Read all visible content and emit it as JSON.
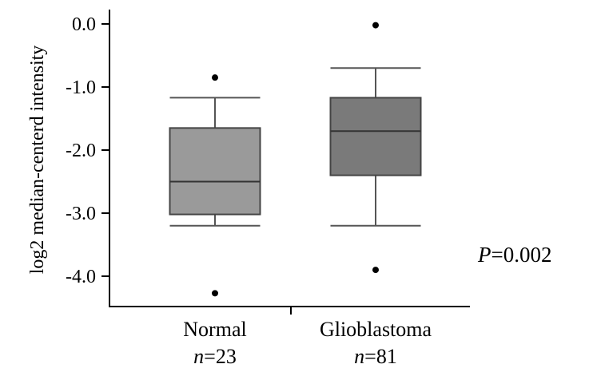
{
  "chart_data": {
    "type": "box",
    "ylabel": "log2 median-centerd intensity",
    "ylim": [
      -4.5,
      0.0
    ],
    "yticks": [
      {
        "value": 0.0,
        "label": "0.0"
      },
      {
        "value": -1.0,
        "label": "-1.0"
      },
      {
        "value": -2.0,
        "label": "-2.0"
      },
      {
        "value": -3.0,
        "label": "-3.0"
      },
      {
        "value": -4.0,
        "label": "-4.0"
      }
    ],
    "categories": [
      {
        "name": "Normal",
        "n_prefix": "n",
        "n_value": "=23",
        "whisker_low": -3.2,
        "q1": -3.02,
        "median": -2.5,
        "q3": -1.65,
        "whisker_high": -1.17,
        "outliers": [
          -0.85,
          -4.27
        ],
        "fill": "#9a9a9a"
      },
      {
        "name": "Glioblastoma",
        "n_prefix": "n",
        "n_value": "=81",
        "whisker_low": -3.2,
        "q1": -2.4,
        "median": -1.7,
        "q3": -1.17,
        "whisker_high": -0.7,
        "outliers": [
          -0.02,
          -3.9
        ],
        "fill": "#7a7a7a"
      }
    ],
    "annotation": {
      "italic": "P",
      "rest": "=0.002"
    }
  }
}
